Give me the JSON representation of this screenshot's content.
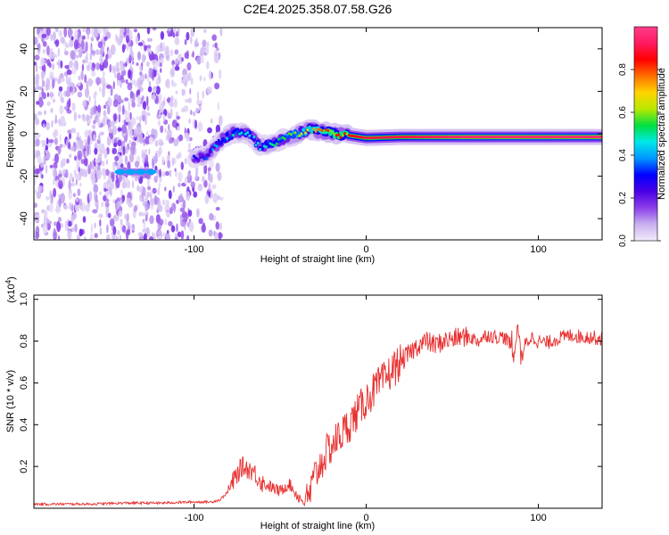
{
  "chart_data": [
    {
      "type": "heatmap",
      "title": "C2E4.2025.358.07.58.G26",
      "xlabel": "Height of straight line (km)",
      "ylabel": "Frequency (Hz)",
      "xlim": [
        -193,
        137
      ],
      "ylim": [
        -50,
        50
      ],
      "xticks": [
        -100,
        0,
        100
      ],
      "yticks": [
        -40,
        -20,
        0,
        20,
        40
      ],
      "colorbar": {
        "label": "Normalized spectral amplitude",
        "range": [
          0,
          1
        ],
        "ticks": [
          "0.0",
          "0.2",
          "0.4",
          "0.6",
          "0.8"
        ],
        "tick_values": [
          0.0,
          0.2,
          0.4,
          0.6,
          0.8
        ],
        "colors": [
          "#f2ecfb",
          "#c9b0f0",
          "#8b3fe8",
          "#4a00e6",
          "#0000ff",
          "#0096ff",
          "#00e8e8",
          "#00e040",
          "#b8e800",
          "#ffd400",
          "#ff7000",
          "#ff0000",
          "#ff1a60",
          "#ff3c8a"
        ]
      },
      "features": [
        {
          "name": "background noise",
          "x_range": [
            -193,
            -90
          ],
          "freq_range": [
            -50,
            50
          ],
          "amplitude": 0.05
        },
        {
          "name": "isolated echo",
          "x_range": [
            -143,
            -125
          ],
          "freq": -18,
          "amplitude": 0.4
        },
        {
          "name": "main signal trace",
          "points": [
            {
              "x": -100,
              "freq": -12,
              "amp": 0.3
            },
            {
              "x": -92,
              "freq": -10,
              "amp": 0.35
            },
            {
              "x": -84,
              "freq": -3,
              "amp": 0.45
            },
            {
              "x": -76,
              "freq": 1,
              "amp": 0.5
            },
            {
              "x": -68,
              "freq": 0,
              "amp": 0.45
            },
            {
              "x": -62,
              "freq": -6,
              "amp": 0.45
            },
            {
              "x": -55,
              "freq": -5,
              "amp": 0.5
            },
            {
              "x": -48,
              "freq": -2,
              "amp": 0.55
            },
            {
              "x": -40,
              "freq": 0,
              "amp": 0.6
            },
            {
              "x": -33,
              "freq": 2,
              "amp": 0.7
            },
            {
              "x": -25,
              "freq": 1,
              "amp": 0.8
            },
            {
              "x": -18,
              "freq": 0,
              "amp": 0.85
            },
            {
              "x": -8,
              "freq": -1,
              "amp": 0.85
            },
            {
              "x": 0,
              "freq": -2,
              "amp": 0.9
            },
            {
              "x": 20,
              "freq": -1.5,
              "amp": 0.9
            },
            {
              "x": 60,
              "freq": -1.5,
              "amp": 0.95
            },
            {
              "x": 100,
              "freq": -1.5,
              "amp": 0.95
            },
            {
              "x": 137,
              "freq": -1.5,
              "amp": 0.95
            }
          ]
        }
      ]
    },
    {
      "type": "line",
      "xlabel": "Height of straight line (km)",
      "ylabel": "SNR (10 * v/v)",
      "y_multiplier": "(x10",
      "y_multiplier_exp": "4",
      "y_multiplier_close": ")",
      "xlim": [
        -193,
        137
      ],
      "ylim": [
        0,
        1.02
      ],
      "xticks": [
        -100,
        0,
        100
      ],
      "yticks": [
        0.2,
        0.4,
        0.6,
        0.8,
        1.0
      ],
      "ytick_labels": [
        "0.2",
        "0.4",
        "0.6",
        "0.8",
        "1.0"
      ],
      "series": [
        {
          "name": "SNR",
          "color": "#e83030",
          "x": [
            -193,
            -180,
            -160,
            -140,
            -120,
            -100,
            -90,
            -85,
            -80,
            -76,
            -72,
            -66,
            -60,
            -55,
            -50,
            -45,
            -40,
            -36,
            -33,
            -30,
            -26,
            -22,
            -18,
            -14,
            -10,
            -5,
            0,
            5,
            10,
            15,
            20,
            25,
            30,
            35,
            40,
            45,
            50,
            55,
            60,
            65,
            70,
            75,
            80,
            84,
            86,
            88,
            90,
            92,
            96,
            100,
            105,
            110,
            115,
            120,
            125,
            130,
            137
          ],
          "values": [
            0.02,
            0.02,
            0.02,
            0.025,
            0.025,
            0.03,
            0.03,
            0.04,
            0.08,
            0.15,
            0.2,
            0.18,
            0.12,
            0.1,
            0.08,
            0.12,
            0.06,
            0.03,
            0.06,
            0.15,
            0.22,
            0.28,
            0.32,
            0.36,
            0.4,
            0.46,
            0.52,
            0.57,
            0.61,
            0.66,
            0.7,
            0.74,
            0.78,
            0.8,
            0.78,
            0.8,
            0.81,
            0.82,
            0.82,
            0.8,
            0.83,
            0.82,
            0.82,
            0.78,
            0.72,
            0.9,
            0.7,
            0.78,
            0.82,
            0.8,
            0.79,
            0.81,
            0.82,
            0.83,
            0.82,
            0.82,
            0.81
          ]
        }
      ]
    }
  ]
}
